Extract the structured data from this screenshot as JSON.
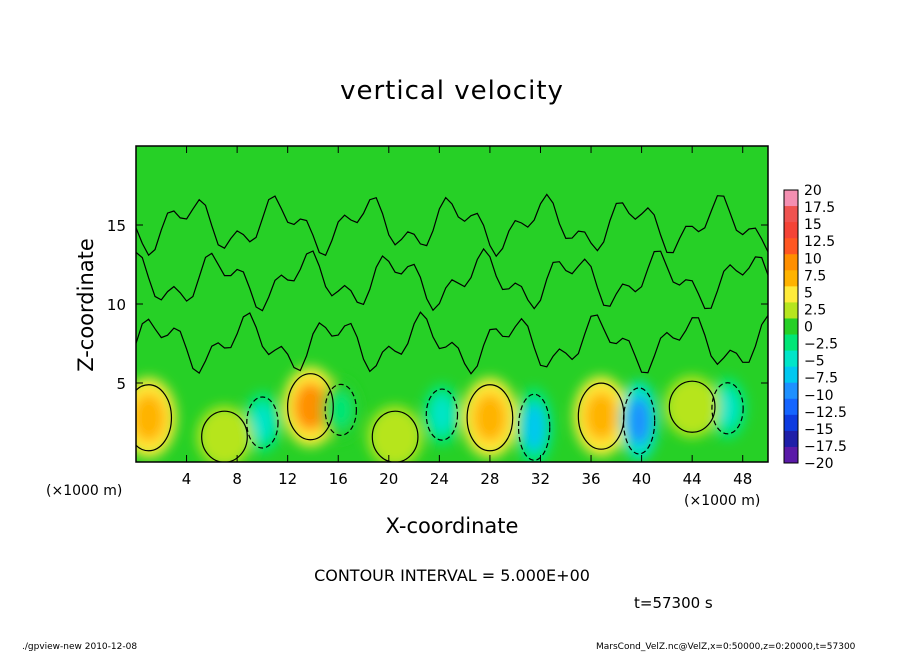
{
  "chart_data": {
    "type": "heatmap",
    "title": "vertical velocity",
    "xlabel": "X-coordinate",
    "ylabel": "Z-coordinate",
    "x_unit": "(×1000 m)",
    "y_unit": "(×1000 m)",
    "xlim": [
      0,
      50
    ],
    "ylim": [
      0,
      20
    ],
    "x_ticks": [
      "4",
      "8",
      "12",
      "16",
      "20",
      "24",
      "28",
      "32",
      "36",
      "40",
      "44",
      "48"
    ],
    "y_ticks": [
      "5",
      "10",
      "15"
    ],
    "colorbar_labels": [
      "20",
      "17.5",
      "15",
      "12.5",
      "10",
      "7.5",
      "5",
      "2.5",
      "0",
      "−2.5",
      "−5",
      "−7.5",
      "−10",
      "−12.5",
      "−15",
      "−17.5",
      "−20"
    ],
    "colorbar_colors": [
      "#f48fb1",
      "#ef5350",
      "#f44336",
      "#ff5722",
      "#ff8f00",
      "#ffb300",
      "#ffeb3b",
      "#b6e51f",
      "#26d026",
      "#00e676",
      "#00e5c8",
      "#00c8f0",
      "#1e90ff",
      "#1565ff",
      "#0d3be0",
      "#1f1fa8",
      "#5a1aa8"
    ],
    "cells": [
      {
        "x": 1.0,
        "z": 2.8,
        "value": 7.5
      },
      {
        "x": 13.8,
        "z": 3.5,
        "value": 10
      },
      {
        "x": 28.0,
        "z": 2.8,
        "value": 7.5
      },
      {
        "x": 36.8,
        "z": 2.9,
        "value": 7.5
      },
      {
        "x": 10.0,
        "z": 2.5,
        "value": -5
      },
      {
        "x": 16.2,
        "z": 3.3,
        "value": -2.5
      },
      {
        "x": 24.2,
        "z": 3.0,
        "value": -5
      },
      {
        "x": 31.5,
        "z": 2.2,
        "value": -7.5
      },
      {
        "x": 39.8,
        "z": 2.6,
        "value": -10
      },
      {
        "x": 46.8,
        "z": 3.4,
        "value": -5
      },
      {
        "x": 7.0,
        "z": 1.6,
        "value": 2.5
      },
      {
        "x": 20.5,
        "z": 1.6,
        "value": 2.5
      },
      {
        "x": 44.0,
        "z": 3.5,
        "value": 2.5
      }
    ],
    "contour_interval": "CONTOUR INTERVAL = 5.000E+00",
    "time_label": "t=57300 s"
  },
  "footer": {
    "left": "./gpview-new   2010-12-08",
    "right": "MarsCond_VelZ.nc@VelZ,x=0:50000,z=0:20000,t=57300"
  }
}
